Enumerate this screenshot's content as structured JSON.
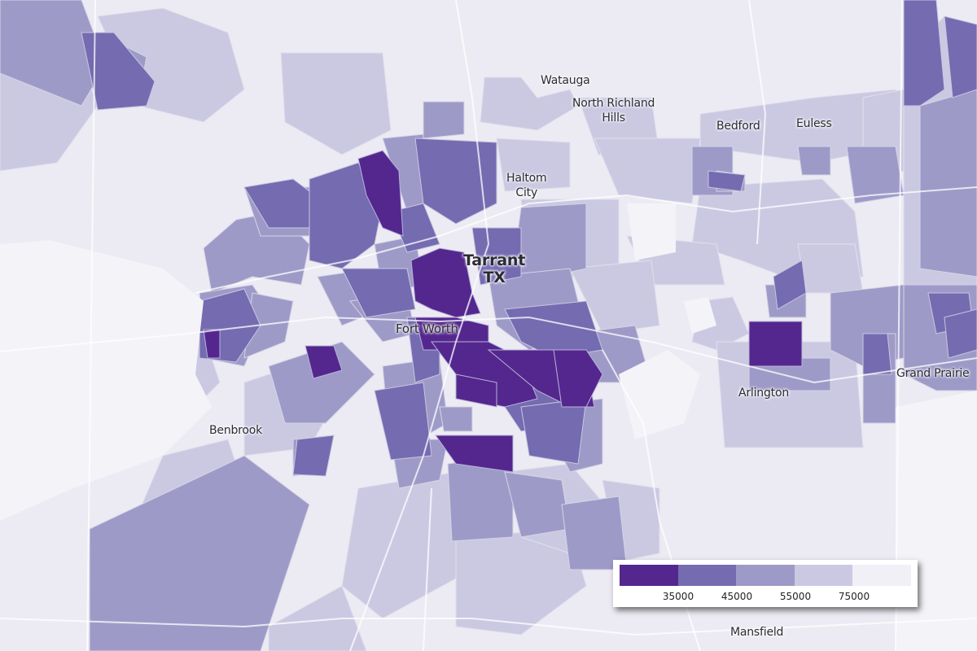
{
  "map": {
    "county_label": "Tarrant",
    "state_label": "TX",
    "places": {
      "watauga": "Watauga",
      "north_richland_1": "North Richland",
      "north_richland_2": "Hills",
      "bedford": "Bedford",
      "euless": "Euless",
      "haltom_1": "Haltom",
      "haltom_2": "City",
      "fort_worth": "Fort Worth",
      "benbrook": "Benbrook",
      "arlington": "Arlington",
      "grand_prairie": "Grand Prairie",
      "mansfield": "Mansfield"
    }
  },
  "legend": {
    "bins": [
      {
        "color": "#54278f"
      },
      {
        "color": "#756bb1"
      },
      {
        "color": "#9e9ac8"
      },
      {
        "color": "#cbc9e2"
      },
      {
        "color": "#f2f0f7"
      }
    ],
    "ticks": [
      "35000",
      "45000",
      "55000",
      "75000"
    ]
  },
  "colors": {
    "background": "#ecebf3",
    "road": "#ffffff"
  }
}
